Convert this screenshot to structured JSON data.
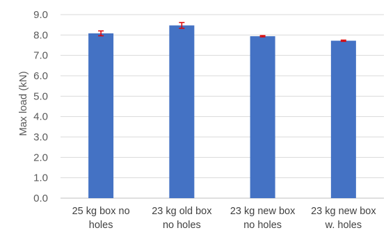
{
  "chart_data": {
    "type": "bar",
    "title": "",
    "xlabel": "",
    "ylabel": "Max load (kN)",
    "ylim": [
      0,
      9
    ],
    "ytick_step": 1,
    "ytick_labels": [
      "0.0",
      "1.0",
      "2.0",
      "3.0",
      "4.0",
      "5.0",
      "6.0",
      "7.0",
      "8.0",
      "9.0"
    ],
    "categories": [
      [
        "25 kg box no",
        "holes"
      ],
      [
        "23 kg old box",
        "no holes"
      ],
      [
        "23 kg new box",
        "no holes"
      ],
      [
        "23 kg new box",
        "w. holes"
      ]
    ],
    "values": [
      8.08,
      8.47,
      7.94,
      7.72
    ],
    "error": [
      0.12,
      0.14,
      0.03,
      0.03
    ],
    "grid": true,
    "legend": "none",
    "colors": {
      "bar": "#4472C4",
      "error_bar": "#E00000",
      "grid": "#D9D9D9"
    }
  }
}
